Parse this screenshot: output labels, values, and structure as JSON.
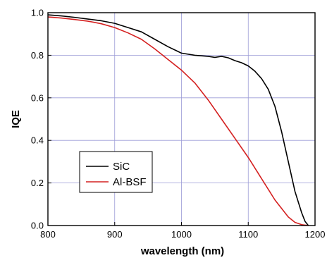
{
  "chart_data": {
    "type": "line",
    "title": "",
    "xlabel": "wavelength (nm)",
    "ylabel": "IQE",
    "xlim": [
      800,
      1200
    ],
    "ylim": [
      0.0,
      1.0
    ],
    "xticks": [
      800,
      900,
      1000,
      1100,
      1200
    ],
    "yticks": [
      0.0,
      0.2,
      0.4,
      0.6,
      0.8,
      1.0
    ],
    "xtick_labels": [
      "800",
      "900",
      "1000",
      "1100",
      "1200"
    ],
    "ytick_labels": [
      "0.0",
      "0.2",
      "0.4",
      "0.6",
      "0.8",
      "1.0"
    ],
    "grid": true,
    "grid_color": "#9a9ad6",
    "legend_position": "bottom-left",
    "series": [
      {
        "name": "SiC",
        "color": "#000000",
        "x": [
          800,
          820,
          840,
          860,
          880,
          900,
          920,
          940,
          960,
          980,
          1000,
          1020,
          1040,
          1050,
          1060,
          1070,
          1080,
          1090,
          1100,
          1110,
          1120,
          1130,
          1140,
          1150,
          1160,
          1170,
          1180,
          1185,
          1190
        ],
        "y": [
          0.99,
          0.985,
          0.978,
          0.97,
          0.962,
          0.95,
          0.93,
          0.91,
          0.875,
          0.84,
          0.81,
          0.8,
          0.795,
          0.79,
          0.795,
          0.788,
          0.775,
          0.765,
          0.75,
          0.725,
          0.69,
          0.64,
          0.56,
          0.44,
          0.3,
          0.16,
          0.06,
          0.02,
          0.0
        ]
      },
      {
        "name": "Al-BSF",
        "color": "#d42020",
        "x": [
          800,
          820,
          840,
          860,
          880,
          900,
          920,
          940,
          960,
          980,
          1000,
          1020,
          1040,
          1060,
          1080,
          1100,
          1120,
          1140,
          1160,
          1170,
          1180,
          1190
        ],
        "y": [
          0.98,
          0.975,
          0.968,
          0.96,
          0.948,
          0.93,
          0.905,
          0.875,
          0.83,
          0.78,
          0.73,
          0.67,
          0.59,
          0.5,
          0.41,
          0.32,
          0.22,
          0.12,
          0.04,
          0.015,
          0.004,
          0.0
        ]
      }
    ]
  }
}
